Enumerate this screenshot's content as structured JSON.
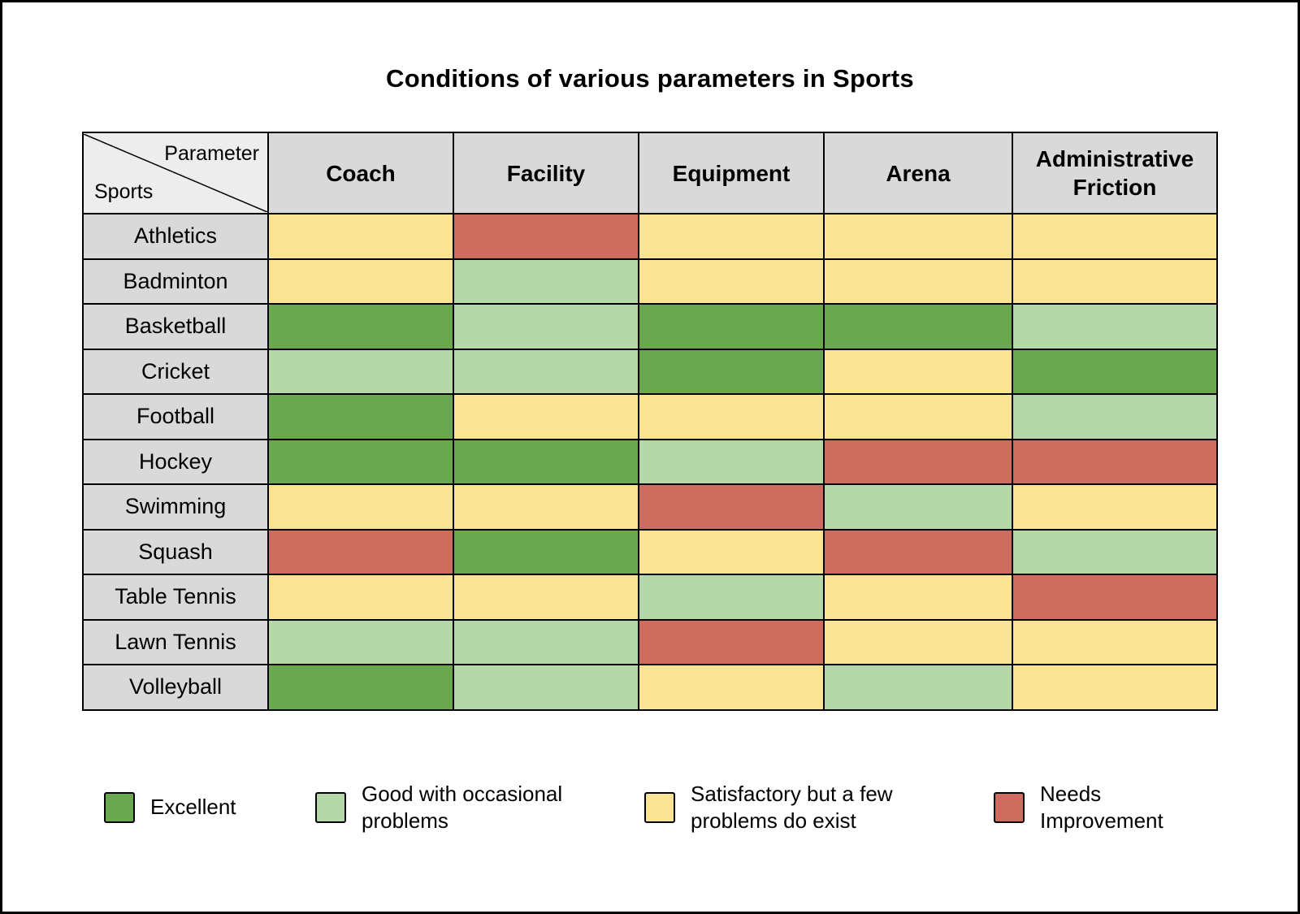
{
  "title": "Conditions of various parameters in Sports",
  "corner": {
    "parameter": "Parameter",
    "sports": "Sports"
  },
  "colors": {
    "excellent": "#6aa84f",
    "good": "#b6d7a8",
    "satisfactory": "#fbe394",
    "needs_improvement": "#ce6c60",
    "header_bg": "#d9d9d9",
    "corner_bg": "#ededed",
    "border": "#000000"
  },
  "legend": [
    {
      "key": "excellent",
      "label": "Excellent"
    },
    {
      "key": "good",
      "label": "Good with occasional problems"
    },
    {
      "key": "satisfactory",
      "label": "Satisfactory but a few problems do exist"
    },
    {
      "key": "needs_improvement",
      "label": "Needs Improvement"
    }
  ],
  "chart_data": {
    "type": "heatmap",
    "title": "Conditions of various parameters in Sports",
    "x_categories": [
      "Coach",
      "Facility",
      "Equipment",
      "Arena",
      "Administrative Friction"
    ],
    "y_categories": [
      "Athletics",
      "Badminton",
      "Basketball",
      "Cricket",
      "Football",
      "Hockey",
      "Swimming",
      "Squash",
      "Table Tennis",
      "Lawn Tennis",
      "Volleyball"
    ],
    "values": [
      [
        "satisfactory",
        "needs_improvement",
        "satisfactory",
        "satisfactory",
        "satisfactory"
      ],
      [
        "satisfactory",
        "good",
        "satisfactory",
        "satisfactory",
        "satisfactory"
      ],
      [
        "excellent",
        "good",
        "excellent",
        "excellent",
        "good"
      ],
      [
        "good",
        "good",
        "excellent",
        "satisfactory",
        "excellent"
      ],
      [
        "excellent",
        "satisfactory",
        "satisfactory",
        "satisfactory",
        "good"
      ],
      [
        "excellent",
        "excellent",
        "good",
        "needs_improvement",
        "needs_improvement"
      ],
      [
        "satisfactory",
        "satisfactory",
        "needs_improvement",
        "good",
        "satisfactory"
      ],
      [
        "needs_improvement",
        "excellent",
        "satisfactory",
        "needs_improvement",
        "good"
      ],
      [
        "satisfactory",
        "satisfactory",
        "good",
        "satisfactory",
        "needs_improvement"
      ],
      [
        "good",
        "good",
        "needs_improvement",
        "satisfactory",
        "satisfactory"
      ],
      [
        "excellent",
        "good",
        "satisfactory",
        "good",
        "satisfactory"
      ]
    ],
    "value_scale": {
      "excellent": "Excellent",
      "good": "Good with occasional problems",
      "satisfactory": "Satisfactory but a few problems do exist",
      "needs_improvement": "Needs Improvement"
    },
    "legend_position": "bottom",
    "grid": true
  }
}
